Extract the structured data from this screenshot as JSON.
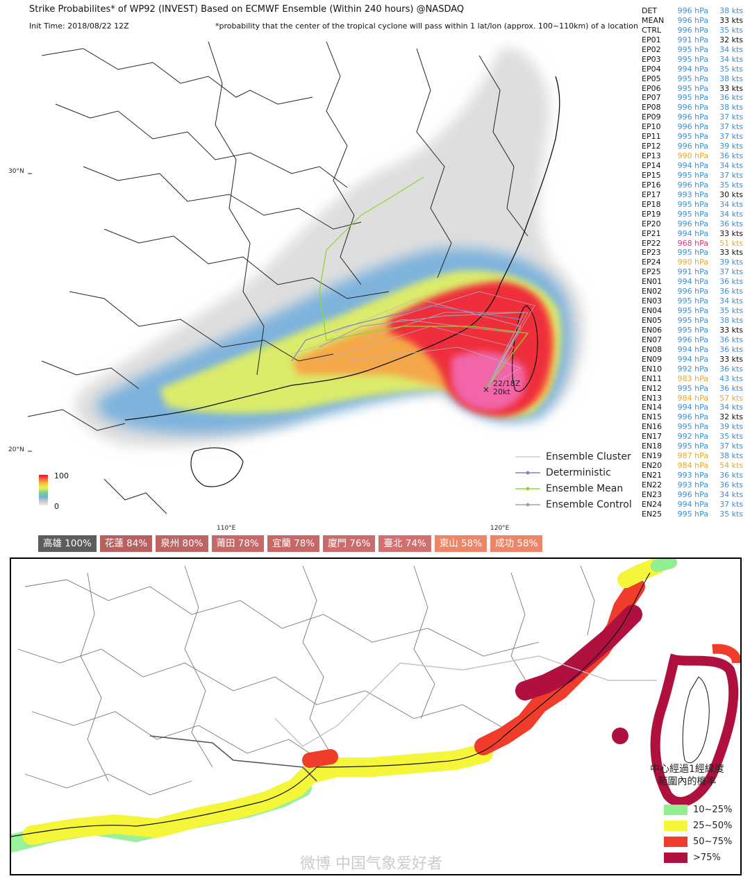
{
  "header": {
    "title": "Strike Probabilites* of WP92 (INVEST) Based on ECMWF Ensemble (Within 240 hours) @NASDAQ",
    "init_time": "Init Time: 2018/08/22 12Z",
    "note": "*probability that the center of the tropical cyclone will pass within 1 lat/lon (approx. 100~110km) of a location"
  },
  "axes": {
    "lat_30": "30°N",
    "lat_20": "20°N",
    "lon_110": "110°E",
    "lon_120": "120°E"
  },
  "colorbar": {
    "max": "100",
    "min": "0"
  },
  "storm_label": {
    "time": "22/18Z",
    "wind": "20kt"
  },
  "legend": {
    "cluster": "Ensemble Cluster",
    "deterministic": "Deterministic",
    "mean": "Ensemble Mean",
    "control": "Ensemble Control"
  },
  "members": [
    {
      "id": "DET",
      "pressure": "996 hPa",
      "wind": "38 kts",
      "pc": "#3a8fd8",
      "wc": "#3a8fd8"
    },
    {
      "id": "MEAN",
      "pressure": "996 hPa",
      "wind": "33 kts",
      "pc": "#3a8fd8",
      "wc": "#111111"
    },
    {
      "id": "CTRL",
      "pressure": "996 hPa",
      "wind": "35 kts",
      "pc": "#3a8fd8",
      "wc": "#3a8fd8"
    },
    {
      "id": "EP01",
      "pressure": "991 hPa",
      "wind": "32 kts",
      "pc": "#3a8fd8",
      "wc": "#111111"
    },
    {
      "id": "EP02",
      "pressure": "995 hPa",
      "wind": "34 kts",
      "pc": "#3a8fd8",
      "wc": "#3a8fd8"
    },
    {
      "id": "EP03",
      "pressure": "995 hPa",
      "wind": "34 kts",
      "pc": "#3a8fd8",
      "wc": "#3a8fd8"
    },
    {
      "id": "EP04",
      "pressure": "994 hPa",
      "wind": "35 kts",
      "pc": "#3a8fd8",
      "wc": "#3a8fd8"
    },
    {
      "id": "EP05",
      "pressure": "995 hPa",
      "wind": "38 kts",
      "pc": "#3a8fd8",
      "wc": "#3a8fd8"
    },
    {
      "id": "EP06",
      "pressure": "995 hPa",
      "wind": "33 kts",
      "pc": "#3a8fd8",
      "wc": "#111111"
    },
    {
      "id": "EP07",
      "pressure": "995 hPa",
      "wind": "36 kts",
      "pc": "#3a8fd8",
      "wc": "#3a8fd8"
    },
    {
      "id": "EP08",
      "pressure": "996 hPa",
      "wind": "38 kts",
      "pc": "#3a8fd8",
      "wc": "#3a8fd8"
    },
    {
      "id": "EP09",
      "pressure": "996 hPa",
      "wind": "37 kts",
      "pc": "#3a8fd8",
      "wc": "#3a8fd8"
    },
    {
      "id": "EP10",
      "pressure": "996 hPa",
      "wind": "37 kts",
      "pc": "#3a8fd8",
      "wc": "#3a8fd8"
    },
    {
      "id": "EP11",
      "pressure": "995 hPa",
      "wind": "37 kts",
      "pc": "#3a8fd8",
      "wc": "#3a8fd8"
    },
    {
      "id": "EP12",
      "pressure": "996 hPa",
      "wind": "39 kts",
      "pc": "#3a8fd8",
      "wc": "#3a8fd8"
    },
    {
      "id": "EP13",
      "pressure": "990 hPa",
      "wind": "36 kts",
      "pc": "#e8a82a",
      "wc": "#3a8fd8"
    },
    {
      "id": "EP14",
      "pressure": "994 hPa",
      "wind": "34 kts",
      "pc": "#3a8fd8",
      "wc": "#3a8fd8"
    },
    {
      "id": "EP15",
      "pressure": "995 hPa",
      "wind": "37 kts",
      "pc": "#3a8fd8",
      "wc": "#3a8fd8"
    },
    {
      "id": "EP16",
      "pressure": "996 hPa",
      "wind": "35 kts",
      "pc": "#3a8fd8",
      "wc": "#3a8fd8"
    },
    {
      "id": "EP17",
      "pressure": "993 hPa",
      "wind": "30 kts",
      "pc": "#3a8fd8",
      "wc": "#111111"
    },
    {
      "id": "EP18",
      "pressure": "995 hPa",
      "wind": "34 kts",
      "pc": "#3a8fd8",
      "wc": "#3a8fd8"
    },
    {
      "id": "EP19",
      "pressure": "995 hPa",
      "wind": "34 kts",
      "pc": "#3a8fd8",
      "wc": "#3a8fd8"
    },
    {
      "id": "EP20",
      "pressure": "996 hPa",
      "wind": "36 kts",
      "pc": "#3a8fd8",
      "wc": "#3a8fd8"
    },
    {
      "id": "EP21",
      "pressure": "994 hPa",
      "wind": "33 kts",
      "pc": "#3a8fd8",
      "wc": "#111111"
    },
    {
      "id": "EP22",
      "pressure": "968 hPa",
      "wind": "51 kts",
      "pc": "#e0307a",
      "wc": "#e8a82a"
    },
    {
      "id": "EP23",
      "pressure": "995 hPa",
      "wind": "33 kts",
      "pc": "#3a8fd8",
      "wc": "#111111"
    },
    {
      "id": "EP24",
      "pressure": "990 hPa",
      "wind": "39 kts",
      "pc": "#e8a82a",
      "wc": "#3a8fd8"
    },
    {
      "id": "EP25",
      "pressure": "991 hPa",
      "wind": "37 kts",
      "pc": "#3a8fd8",
      "wc": "#3a8fd8"
    },
    {
      "id": "EN01",
      "pressure": "994 hPa",
      "wind": "36 kts",
      "pc": "#3a8fd8",
      "wc": "#3a8fd8"
    },
    {
      "id": "EN02",
      "pressure": "996 hPa",
      "wind": "36 kts",
      "pc": "#3a8fd8",
      "wc": "#3a8fd8"
    },
    {
      "id": "EN03",
      "pressure": "995 hPa",
      "wind": "34 kts",
      "pc": "#3a8fd8",
      "wc": "#3a8fd8"
    },
    {
      "id": "EN04",
      "pressure": "995 hPa",
      "wind": "35 kts",
      "pc": "#3a8fd8",
      "wc": "#3a8fd8"
    },
    {
      "id": "EN05",
      "pressure": "995 hPa",
      "wind": "38 kts",
      "pc": "#3a8fd8",
      "wc": "#3a8fd8"
    },
    {
      "id": "EN06",
      "pressure": "995 hPa",
      "wind": "33 kts",
      "pc": "#3a8fd8",
      "wc": "#111111"
    },
    {
      "id": "EN07",
      "pressure": "996 hPa",
      "wind": "36 kts",
      "pc": "#3a8fd8",
      "wc": "#3a8fd8"
    },
    {
      "id": "EN08",
      "pressure": "994 hPa",
      "wind": "36 kts",
      "pc": "#3a8fd8",
      "wc": "#3a8fd8"
    },
    {
      "id": "EN09",
      "pressure": "994 hPa",
      "wind": "33 kts",
      "pc": "#3a8fd8",
      "wc": "#111111"
    },
    {
      "id": "EN10",
      "pressure": "992 hPa",
      "wind": "36 kts",
      "pc": "#3a8fd8",
      "wc": "#3a8fd8"
    },
    {
      "id": "EN11",
      "pressure": "983 hPa",
      "wind": "43 kts",
      "pc": "#e8a82a",
      "wc": "#3a8fd8"
    },
    {
      "id": "EN12",
      "pressure": "995 hPa",
      "wind": "36 kts",
      "pc": "#3a8fd8",
      "wc": "#3a8fd8"
    },
    {
      "id": "EN13",
      "pressure": "984 hPa",
      "wind": "57 kts",
      "pc": "#e8a82a",
      "wc": "#e8a82a"
    },
    {
      "id": "EN14",
      "pressure": "994 hPa",
      "wind": "34 kts",
      "pc": "#3a8fd8",
      "wc": "#3a8fd8"
    },
    {
      "id": "EN15",
      "pressure": "996 hPa",
      "wind": "32 kts",
      "pc": "#3a8fd8",
      "wc": "#111111"
    },
    {
      "id": "EN16",
      "pressure": "995 hPa",
      "wind": "39 kts",
      "pc": "#3a8fd8",
      "wc": "#3a8fd8"
    },
    {
      "id": "EN17",
      "pressure": "992 hPa",
      "wind": "35 kts",
      "pc": "#3a8fd8",
      "wc": "#3a8fd8"
    },
    {
      "id": "EN18",
      "pressure": "995 hPa",
      "wind": "37 kts",
      "pc": "#3a8fd8",
      "wc": "#3a8fd8"
    },
    {
      "id": "EN19",
      "pressure": "987 hPa",
      "wind": "38 kts",
      "pc": "#e8a82a",
      "wc": "#3a8fd8"
    },
    {
      "id": "EN20",
      "pressure": "984 hPa",
      "wind": "54 kts",
      "pc": "#e8a82a",
      "wc": "#e8a82a"
    },
    {
      "id": "EN21",
      "pressure": "993 hPa",
      "wind": "36 kts",
      "pc": "#3a8fd8",
      "wc": "#3a8fd8"
    },
    {
      "id": "EN22",
      "pressure": "993 hPa",
      "wind": "36 kts",
      "pc": "#3a8fd8",
      "wc": "#3a8fd8"
    },
    {
      "id": "EN23",
      "pressure": "996 hPa",
      "wind": "34 kts",
      "pc": "#3a8fd8",
      "wc": "#3a8fd8"
    },
    {
      "id": "EN24",
      "pressure": "994 hPa",
      "wind": "37 kts",
      "pc": "#3a8fd8",
      "wc": "#3a8fd8"
    },
    {
      "id": "EN25",
      "pressure": "995 hPa",
      "wind": "35 kts",
      "pc": "#3a8fd8",
      "wc": "#3a8fd8"
    }
  ],
  "stations": [
    {
      "text": "高雄 100%",
      "color": "#5c5c5c"
    },
    {
      "text": "花蓮 84%",
      "color": "#b86060"
    },
    {
      "text": "泉州 80%",
      "color": "#bf6464"
    },
    {
      "text": "莆田 78%",
      "color": "#c66868"
    },
    {
      "text": "宜蘭 78%",
      "color": "#c66868"
    },
    {
      "text": "廈門 76%",
      "color": "#cc6b6b"
    },
    {
      "text": "臺北 74%",
      "color": "#d27070"
    },
    {
      "text": "東山 58%",
      "color": "#ec8668"
    },
    {
      "text": "成功 58%",
      "color": "#ec8668"
    }
  ],
  "probability_legend": {
    "title_line1": "中心經過1經緯度",
    "title_line2": "範圍內的機率",
    "items": [
      {
        "label": "10~25%",
        "color": "#90f090"
      },
      {
        "label": "25~50%",
        "color": "#f5f53a"
      },
      {
        "label": "50~75%",
        "color": "#f03c2a"
      },
      {
        "label": ">75%",
        "color": "#b0103e"
      }
    ]
  },
  "watermark": "微博 中国气象爱好者"
}
